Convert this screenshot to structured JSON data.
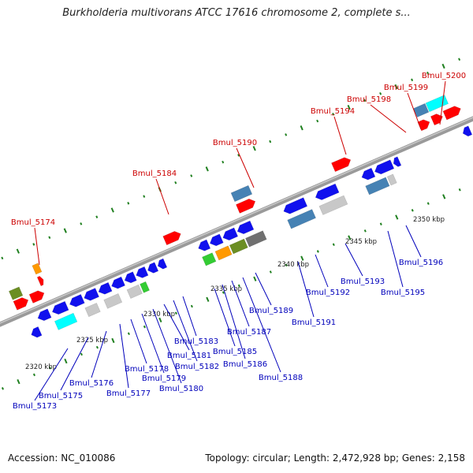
{
  "title": "Burkholderia multivorans ATCC 17616 chromosome 2, complete s...",
  "footer": {
    "accession": "Accession: NC_010086",
    "stats": "Topology: circular; Length: 2,472,928 bp; Genes: 2,158"
  },
  "colors": {
    "backbone": "#808080",
    "label_forward": "#cc0000",
    "label_reverse": "#0000bb",
    "dots_forward": "#208020",
    "red": "#ff0000",
    "blue": "#1010ee",
    "steelblue": "#4682b4",
    "cyan": "#00ffff",
    "gray": "#c8c8c8",
    "orange": "#ff9900",
    "olive": "#6b8e23",
    "darkgray": "#707070",
    "green": "#33cc33"
  },
  "ticks": [
    "2320 kbp",
    "2325 kbp",
    "2330 kbp",
    "2335 kbp",
    "2340 kbp",
    "2345 kbp",
    "2350 kbp"
  ],
  "forward_genes": [
    "Bmul_5174",
    "Bmul_5184",
    "Bmul_5190",
    "Bmul_5194",
    "Bmul_5198",
    "Bmul_5199",
    "Bmul_5200"
  ],
  "reverse_genes": [
    "Bmul_5173",
    "Bmul_5175",
    "Bmul_5176",
    "Bmul_5177",
    "Bmul_5178",
    "Bmul_5179",
    "Bmul_5180",
    "Bmul_5181",
    "Bmul_5182",
    "Bmul_5183",
    "Bmul_5185",
    "Bmul_5186",
    "Bmul_5187",
    "Bmul_5188",
    "Bmul_5189",
    "Bmul_5191",
    "Bmul_5192",
    "Bmul_5193",
    "Bmul_5195",
    "Bmul_5196"
  ]
}
